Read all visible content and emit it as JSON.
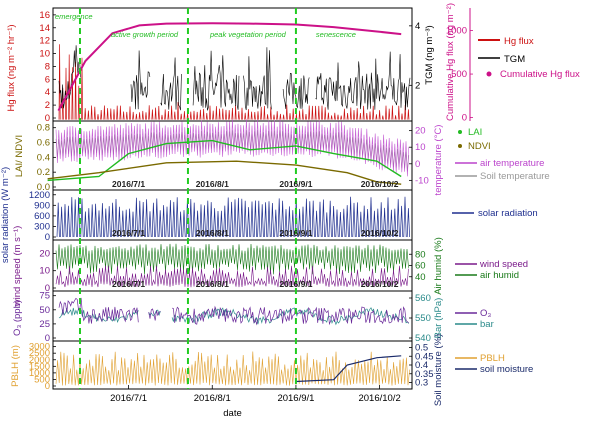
{
  "figure": {
    "xlabel": "date",
    "date_ticks": [
      "2016/7/1",
      "2016/8/1",
      "2016/9/1",
      "2016/10/2"
    ],
    "colors": {
      "hg": "#cc1111",
      "tgm": "#000000",
      "cum": "#cc1188",
      "lai": "#22bb22",
      "ndvi": "#7a6a00",
      "airT": "#bb44cc",
      "soilT": "#999999",
      "rad": "#1f2f8f",
      "ws": "#7a1a8a",
      "rh": "#1a7a1a",
      "o3": "#6a2a9a",
      "bar": "#2a8a8a",
      "pblh": "#e0a030",
      "soil": "#1a2a6a",
      "vline": "#22cc22"
    }
  },
  "chart_data": [
    {
      "type": "line",
      "panel": "Hg / TGM",
      "ylabel_left": "Hg flux (ng m⁻² hr⁻¹)",
      "ylabel_right": "TGM (ng m⁻³)",
      "ylabel_right2": "Cumulative Hg flux (ng m⁻²)",
      "yticks_left": [
        "0",
        "2",
        "4",
        "6",
        "8",
        "10",
        "12",
        "14",
        "16"
      ],
      "yticks_right": [
        "2",
        "4"
      ],
      "yticks_right2": [
        "0",
        "500",
        "1000"
      ],
      "annotations": [
        "emergence",
        "active growth period",
        "peak vegetation period",
        "senescence"
      ],
      "legend": [
        "Hg flux",
        "TGM",
        "Cumulative Hg flux"
      ],
      "series": [
        {
          "name": "Cumulative Hg flux",
          "x": [
            "2016/6/5",
            "2016/6/15",
            "2016/6/25",
            "2016/7/5",
            "2016/7/15",
            "2016/8/1",
            "2016/8/15",
            "2016/9/1",
            "2016/9/15",
            "2016/10/1",
            "2016/10/10"
          ],
          "y": [
            80,
            650,
            970,
            1060,
            1080,
            1085,
            1080,
            1070,
            1040,
            990,
            960
          ]
        }
      ]
    },
    {
      "type": "line",
      "panel": "LAI / NDVI / temperature",
      "ylabel_left": "LAI/ NDVI",
      "ylabel_right": "temperature (°C)",
      "yticks_left": [
        "0.0",
        "0.2",
        "0.4",
        "0.6",
        "0.8"
      ],
      "yticks_right": [
        "-10",
        "0",
        "10",
        "20"
      ],
      "legend": [
        "LAI",
        "NDVI",
        "air temperature",
        "Soil temperature"
      ],
      "series": [
        {
          "name": "LAI",
          "x": [
            "2016/6/1",
            "2016/6/20",
            "2016/7/1",
            "2016/7/15",
            "2016/8/1",
            "2016/8/15",
            "2016/9/1",
            "2016/9/15",
            "2016/10/1",
            "2016/10/10"
          ],
          "y": [
            0.1,
            0.15,
            0.45,
            0.58,
            0.62,
            0.5,
            0.55,
            0.45,
            0.35,
            0.15
          ]
        },
        {
          "name": "NDVI",
          "x": [
            "2016/6/1",
            "2016/6/20",
            "2016/7/15",
            "2016/8/10",
            "2016/9/1",
            "2016/9/20",
            "2016/10/1",
            "2016/10/10"
          ],
          "y": [
            0.12,
            0.2,
            0.33,
            0.35,
            0.3,
            0.2,
            0.08,
            0.05
          ]
        }
      ]
    },
    {
      "type": "line",
      "panel": "solar radiation",
      "ylabel_left": "solar radiation (W m⁻²)",
      "yticks_left": [
        "0",
        "300",
        "600",
        "900",
        "1200"
      ],
      "legend": [
        "solar radiation"
      ]
    },
    {
      "type": "line",
      "panel": "wind / humidity",
      "ylabel_left": "wind speed (m s⁻¹)",
      "ylabel_right": "Air humid (%)",
      "yticks_left": [
        "0",
        "10",
        "20"
      ],
      "yticks_right": [
        "40",
        "60",
        "80"
      ],
      "legend": [
        "wind speed",
        "air humid"
      ]
    },
    {
      "type": "line",
      "panel": "O3 / pressure",
      "ylabel_left": "O₃ (ppb)",
      "ylabel_right": "Bar (hPa)",
      "yticks_left": [
        "0",
        "25",
        "50",
        "75"
      ],
      "yticks_right": [
        "540",
        "550",
        "560"
      ],
      "legend": [
        "O₃",
        "bar"
      ]
    },
    {
      "type": "line",
      "panel": "PBLH / soil moisture",
      "ylabel_left": "PBLH (m)",
      "ylabel_right": "Soil moisture (%)",
      "yticks_left": [
        "0",
        "500",
        "1000",
        "1500",
        "2000",
        "2500",
        "3000"
      ],
      "yticks_right": [
        "0.3",
        "0.35",
        "0.4",
        "0.45",
        "0.5"
      ],
      "legend": [
        "PBLH",
        "soil moisture"
      ],
      "series": [
        {
          "name": "soil moisture",
          "x": [
            "2016/9/1",
            "2016/9/15",
            "2016/9/20",
            "2016/10/1",
            "2016/10/10"
          ],
          "y": [
            0.31,
            0.32,
            0.4,
            0.44,
            0.45
          ]
        }
      ]
    }
  ]
}
